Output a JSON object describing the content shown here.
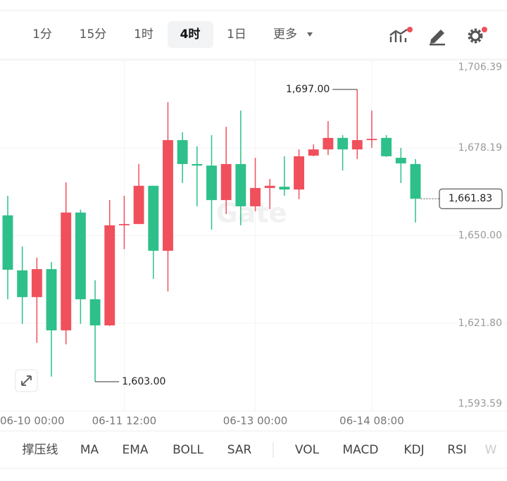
{
  "toolbar": {
    "intervals": [
      "1分",
      "15分",
      "1时",
      "4时",
      "1日"
    ],
    "active": 3,
    "more": "更多"
  },
  "chart_data": {
    "type": "candlestick",
    "categories": [
      "06-10 00:00",
      null,
      null,
      null,
      null,
      null,
      null,
      null,
      "06-11 12:00",
      null,
      null,
      null,
      null,
      null,
      null,
      null,
      null,
      "06-13 00:00",
      null,
      null,
      null,
      null,
      null,
      null,
      null,
      "06-14 08:00",
      null,
      null,
      null
    ],
    "open": [
      1656.5,
      1638.8,
      1630.2,
      1639.2,
      1619.5,
      1657.4,
      1629.5,
      1621.1,
      1653.3,
      1653.7,
      1666.0,
      1645.1,
      1680.7,
      1673.0,
      1672.5,
      1661.4,
      1673.0,
      1659.4,
      1665.3,
      1665.7,
      1664.8,
      1675.7,
      1677.7,
      1681.4,
      1677.7,
      1680.7,
      1681.4,
      1675.0,
      1673.0
    ],
    "high": [
      1662.8,
      1646.5,
      1642.9,
      1641.5,
      1667.1,
      1658.3,
      1635.6,
      1661.4,
      1662.8,
      1673.0,
      1666.0,
      1692.9,
      1683.2,
      1678.7,
      1682.3,
      1685.0,
      1690.2,
      1675.0,
      1668.2,
      1675.5,
      1677.7,
      1679.3,
      1686.8,
      1682.3,
      1697.0,
      1690.2,
      1682.3,
      1678.2,
      1674.6
    ],
    "low": [
      1629.5,
      1621.6,
      1615.5,
      1604.6,
      1615.0,
      1621.6,
      1603.0,
      1620.9,
      1645.6,
      1653.7,
      1636.1,
      1632.0,
      1666.9,
      1659.4,
      1651.9,
      1656.9,
      1653.3,
      1657.8,
      1658.5,
      1662.8,
      1661.7,
      1675.5,
      1675.9,
      1670.9,
      1674.6,
      1678.2,
      1675.3,
      1666.9,
      1654.2
    ],
    "close": [
      1639.0,
      1630.2,
      1639.2,
      1619.5,
      1657.4,
      1629.5,
      1621.1,
      1653.3,
      1653.7,
      1666.0,
      1645.1,
      1680.7,
      1673.0,
      1672.5,
      1661.4,
      1673.0,
      1659.4,
      1665.3,
      1666.0,
      1664.8,
      1675.5,
      1677.7,
      1681.4,
      1677.7,
      1680.7,
      1681.1,
      1675.5,
      1673.2,
      1661.83
    ],
    "up_color": "#f0505c",
    "down_color": "#2ec08a",
    "ylim": [
      1593.59,
      1706.39
    ],
    "yticks": [
      {
        "value": 1593.59,
        "label": "1,593.59"
      },
      {
        "value": 1621.8,
        "label": "1,621.80"
      },
      {
        "value": 1650,
        "label": "1,650.00"
      },
      {
        "value": 1678.19,
        "label": "1,678.19"
      },
      {
        "value": 1706.39,
        "label": "1,706.39"
      }
    ],
    "grid": true,
    "max_label": "1,697.00",
    "min_label": "1,603.00",
    "last_label": "1,661.83",
    "watermark": "Gate"
  },
  "indicators": [
    "撑压线",
    "MA",
    "EMA",
    "BOLL",
    "SAR",
    "VOL",
    "MACD",
    "KDJ",
    "RSI",
    "W"
  ]
}
